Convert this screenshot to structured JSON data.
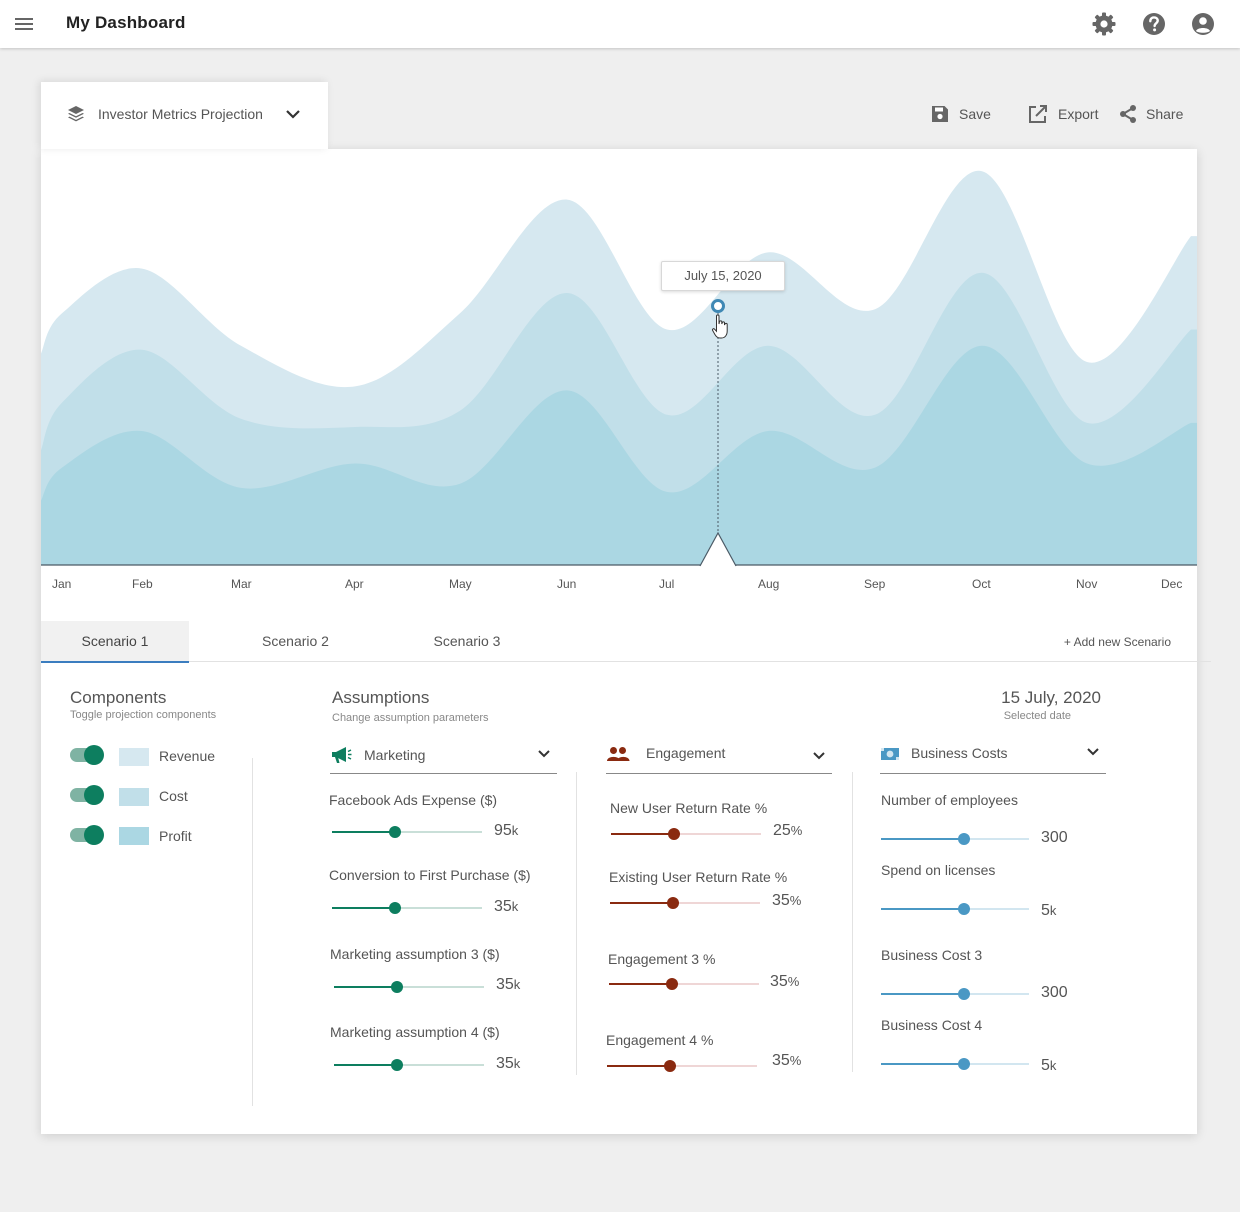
{
  "app": {
    "title": "My Dashboard"
  },
  "topbar": {
    "icons": [
      "gear-icon",
      "help-icon",
      "account-icon",
      "menu-icon"
    ]
  },
  "view_selector": {
    "label": "Investor Metrics Projection"
  },
  "actions": {
    "save": "Save",
    "export": "Export",
    "share": "Share"
  },
  "chart": {
    "tooltip": "July 15, 2020",
    "months": [
      "Jan",
      "Feb",
      "Mar",
      "Apr",
      "May",
      "Jun",
      "Jul",
      "Aug",
      "Sep",
      "Oct",
      "Nov",
      "Dec"
    ],
    "colors": {
      "revenue": "#d6e8f0",
      "cost": "#c1dfe9",
      "profit": "#abd7e3",
      "marker": "#3f88b4"
    }
  },
  "chart_data": {
    "type": "area",
    "x": [
      "Jan",
      "Feb",
      "Mar",
      "Apr",
      "May",
      "Jun",
      "Jul",
      "Aug",
      "Sep",
      "Oct",
      "Nov",
      "Dec"
    ],
    "series": [
      {
        "name": "Revenue",
        "values": [
          62,
          73,
          54,
          44,
          62,
          90,
          58,
          77,
          63,
          97,
          50,
          81
        ]
      },
      {
        "name": "Cost",
        "values": [
          40,
          53,
          36,
          34,
          38,
          67,
          37,
          54,
          37,
          72,
          35,
          58
        ]
      },
      {
        "name": "Profit",
        "values": [
          24,
          33,
          19,
          25,
          20,
          43,
          18,
          33,
          24,
          54,
          25,
          35
        ]
      }
    ],
    "selected": "July 15, 2020"
  },
  "scenarios": {
    "tabs": [
      "Scenario 1",
      "Scenario 2",
      "Scenario 3"
    ],
    "active": 0,
    "add_label": "+ Add new Scenario"
  },
  "components": {
    "title": "Components",
    "subtitle": "Toggle projection components",
    "items": [
      {
        "label": "Revenue",
        "on": true,
        "color": "#d6e8f0"
      },
      {
        "label": "Cost",
        "on": true,
        "color": "#c1dfe9"
      },
      {
        "label": "Profit",
        "on": true,
        "color": "#abd7e3"
      }
    ]
  },
  "assumptions": {
    "title": "Assumptions",
    "subtitle": "Change assumption parameters",
    "date": "15 July, 2020",
    "date_caption": "Selected date",
    "columns": [
      {
        "title": "Marketing",
        "icon": "megaphone-icon",
        "color": "#0d7e5f",
        "track": "#c9dfd8",
        "sliders": [
          {
            "label": "Facebook Ads Expense ($)",
            "value": "95",
            "unit": "k",
            "level": 0.42
          },
          {
            "label": "Conversion to First Purchase ($)",
            "value": "35",
            "unit": "k",
            "level": 0.42
          },
          {
            "label": "Marketing assumption 3 ($)",
            "value": "35",
            "unit": "k",
            "level": 0.42
          },
          {
            "label": "Marketing assumption 4 ($)",
            "value": "35",
            "unit": "k",
            "level": 0.42
          }
        ]
      },
      {
        "title": "Engagement",
        "icon": "people-icon",
        "color": "#8a2a10",
        "track": "#efd6d6",
        "sliders": [
          {
            "label": "New User Return Rate %",
            "value": "25",
            "unit": "%",
            "level": 0.42
          },
          {
            "label": "Existing User Return Rate %",
            "value": "35",
            "unit": "%",
            "level": 0.42
          },
          {
            "label": "Engagement 3 %",
            "value": "35",
            "unit": "%",
            "level": 0.42
          },
          {
            "label": "Engagement 4 %",
            "value": "35",
            "unit": "%",
            "level": 0.42
          }
        ]
      },
      {
        "title": "Business Costs",
        "icon": "money-icon",
        "color": "#4a98c4",
        "track": "#d2e6f0",
        "sliders": [
          {
            "label": "Number of employees",
            "value": "300",
            "unit": "",
            "level": 0.56
          },
          {
            "label": "Spend on licenses",
            "value": "5",
            "unit": "k",
            "level": 0.56
          },
          {
            "label": "Business Cost 3",
            "value": "300",
            "unit": "",
            "level": 0.56
          },
          {
            "label": "Business Cost 4",
            "value": "5",
            "unit": "k",
            "level": 0.56
          }
        ]
      }
    ]
  }
}
